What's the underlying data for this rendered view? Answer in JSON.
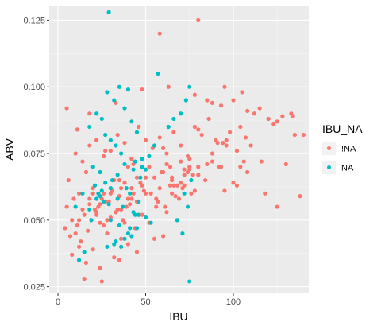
{
  "chart_data": {
    "type": "scatter",
    "title": "",
    "xlabel": "IBU",
    "ylabel": "ABV",
    "xlim": [
      -5,
      143
    ],
    "ylim": [
      0.0225,
      0.1305
    ],
    "x_ticks": [
      0,
      50,
      100
    ],
    "x_tick_labels": [
      "0",
      "50",
      "100"
    ],
    "y_ticks": [
      0.025,
      0.05,
      0.075,
      0.1,
      0.125
    ],
    "y_tick_labels": [
      "0.025",
      "0.050",
      "0.075",
      "0.100",
      "0.125"
    ],
    "grid": true,
    "legend": {
      "title": "IBU_NA",
      "position": "right",
      "entries": [
        {
          "label": "!NA",
          "color": "#F8766D"
        },
        {
          "label": "NA",
          "color": "#00BFC4"
        }
      ]
    },
    "colors": {
      "!NA": "#F8766D",
      "NA": "#00BFC4",
      "panel_background": "#EBEBEB",
      "grid_major": "#FFFFFF",
      "grid_minor": "#F5F5F5"
    },
    "series": [
      {
        "name": "!NA",
        "color": "#F8766D",
        "x": [
          5,
          8,
          10,
          12,
          15,
          6,
          9,
          11,
          14,
          18,
          20,
          22,
          25,
          28,
          30,
          7,
          13,
          17,
          19,
          23,
          27,
          31,
          33,
          35,
          38,
          40,
          42,
          45,
          48,
          50,
          16,
          21,
          24,
          26,
          29,
          32,
          36,
          39,
          43,
          47,
          52,
          55,
          58,
          60,
          62,
          65,
          68,
          70,
          72,
          75,
          10,
          14,
          18,
          22,
          26,
          30,
          34,
          38,
          42,
          46,
          50,
          54,
          58,
          62,
          66,
          70,
          74,
          78,
          82,
          86,
          90,
          94,
          98,
          102,
          106,
          110,
          4,
          12,
          20,
          28,
          36,
          44,
          52,
          60,
          68,
          76,
          84,
          92,
          100,
          108,
          116,
          8,
          16,
          24,
          32,
          40,
          48,
          56,
          64,
          72,
          80,
          88,
          96,
          104,
          112,
          120,
          128,
          15,
          25,
          35,
          45,
          55,
          65,
          75,
          85,
          95,
          105,
          115,
          125,
          135,
          18,
          33,
          48,
          63,
          78,
          93,
          108,
          123,
          11,
          27,
          43,
          59,
          75,
          91,
          107,
          20,
          40,
          60,
          80,
          100,
          5,
          35,
          65,
          95,
          125,
          88,
          80,
          58,
          102,
          118,
          130,
          134,
          133,
          138,
          140,
          12,
          18,
          24,
          30,
          36,
          42,
          50,
          56,
          64,
          72,
          80,
          88,
          96,
          104,
          66,
          70,
          74,
          78,
          45,
          53,
          61,
          69,
          77,
          85,
          93,
          22,
          26,
          30,
          34,
          38,
          42,
          46,
          37,
          41,
          49,
          57,
          62,
          67,
          71
        ],
        "y": [
          0.055,
          0.05,
          0.045,
          0.06,
          0.052,
          0.065,
          0.058,
          0.048,
          0.054,
          0.056,
          0.06,
          0.052,
          0.058,
          0.05,
          0.062,
          0.044,
          0.042,
          0.046,
          0.05,
          0.055,
          0.057,
          0.061,
          0.053,
          0.059,
          0.064,
          0.058,
          0.062,
          0.066,
          0.063,
          0.06,
          0.068,
          0.054,
          0.049,
          0.06,
          0.057,
          0.065,
          0.062,
          0.055,
          0.06,
          0.064,
          0.07,
          0.066,
          0.062,
          0.068,
          0.071,
          0.065,
          0.063,
          0.072,
          0.067,
          0.07,
          0.075,
          0.072,
          0.078,
          0.08,
          0.074,
          0.076,
          0.082,
          0.079,
          0.073,
          0.085,
          0.08,
          0.077,
          0.081,
          0.075,
          0.083,
          0.078,
          0.074,
          0.085,
          0.082,
          0.088,
          0.08,
          0.079,
          0.083,
          0.076,
          0.072,
          0.078,
          0.047,
          0.04,
          0.039,
          0.045,
          0.043,
          0.047,
          0.049,
          0.044,
          0.05,
          0.06,
          0.065,
          0.07,
          0.064,
          0.068,
          0.072,
          0.037,
          0.034,
          0.032,
          0.036,
          0.041,
          0.052,
          0.058,
          0.063,
          0.069,
          0.07,
          0.075,
          0.08,
          0.085,
          0.09,
          0.088,
          0.089,
          0.028,
          0.027,
          0.035,
          0.038,
          0.043,
          0.066,
          0.069,
          0.095,
          0.1,
          0.098,
          0.092,
          0.087,
          0.082,
          0.09,
          0.094,
          0.099,
          0.1,
          0.097,
          0.093,
          0.091,
          0.086,
          0.084,
          0.076,
          0.071,
          0.068,
          0.073,
          0.079,
          0.081,
          0.062,
          0.07,
          0.077,
          0.084,
          0.095,
          0.092,
          0.065,
          0.06,
          0.061,
          0.055,
          0.094,
          0.125,
          0.12,
          0.063,
          0.06,
          0.071,
          0.089,
          0.09,
          0.059,
          0.082,
          0.05,
          0.058,
          0.056,
          0.06,
          0.054,
          0.062,
          0.066,
          0.055,
          0.07,
          0.063,
          0.067,
          0.072,
          0.078,
          0.07,
          0.063,
          0.064,
          0.068,
          0.061,
          0.057,
          0.06,
          0.055,
          0.058,
          0.067,
          0.071,
          0.07,
          0.053,
          0.048,
          0.051,
          0.054,
          0.049,
          0.058,
          0.052,
          0.05,
          0.056,
          0.061,
          0.057,
          0.053,
          0.059,
          0.062
        ]
      },
      {
        "name": "NA",
        "color": "#00BFC4",
        "x": [
          29,
          57,
          28,
          35,
          40,
          22,
          18,
          25,
          32,
          38,
          42,
          45,
          30,
          33,
          27,
          36,
          44,
          20,
          24,
          31,
          39,
          41,
          34,
          37,
          43,
          46,
          26,
          23,
          21,
          47,
          50,
          48,
          30,
          35,
          40,
          45,
          38,
          32,
          28,
          42,
          75,
          73,
          70,
          76,
          72,
          74,
          68,
          71,
          75,
          63,
          66,
          12,
          15,
          19,
          10,
          14,
          33,
          36,
          41,
          44,
          29,
          25,
          22,
          18,
          48,
          52,
          55,
          30,
          34,
          38,
          43,
          27,
          24,
          46,
          50,
          53
        ],
        "y": [
          0.128,
          0.105,
          0.098,
          0.1,
          0.099,
          0.09,
          0.085,
          0.088,
          0.095,
          0.092,
          0.087,
          0.083,
          0.08,
          0.078,
          0.082,
          0.075,
          0.072,
          0.07,
          0.068,
          0.065,
          0.062,
          0.06,
          0.058,
          0.055,
          0.053,
          0.052,
          0.057,
          0.06,
          0.063,
          0.066,
          0.069,
          0.073,
          0.05,
          0.048,
          0.045,
          0.047,
          0.043,
          0.041,
          0.04,
          0.044,
          0.1,
          0.095,
          0.09,
          0.065,
          0.06,
          0.055,
          0.05,
          0.045,
          0.027,
          0.085,
          0.088,
          0.035,
          0.038,
          0.05,
          0.055,
          0.06,
          0.042,
          0.04,
          0.047,
          0.052,
          0.056,
          0.061,
          0.058,
          0.054,
          0.07,
          0.074,
          0.078,
          0.062,
          0.067,
          0.071,
          0.069,
          0.064,
          0.059,
          0.057,
          0.051,
          0.049
        ]
      }
    ]
  }
}
